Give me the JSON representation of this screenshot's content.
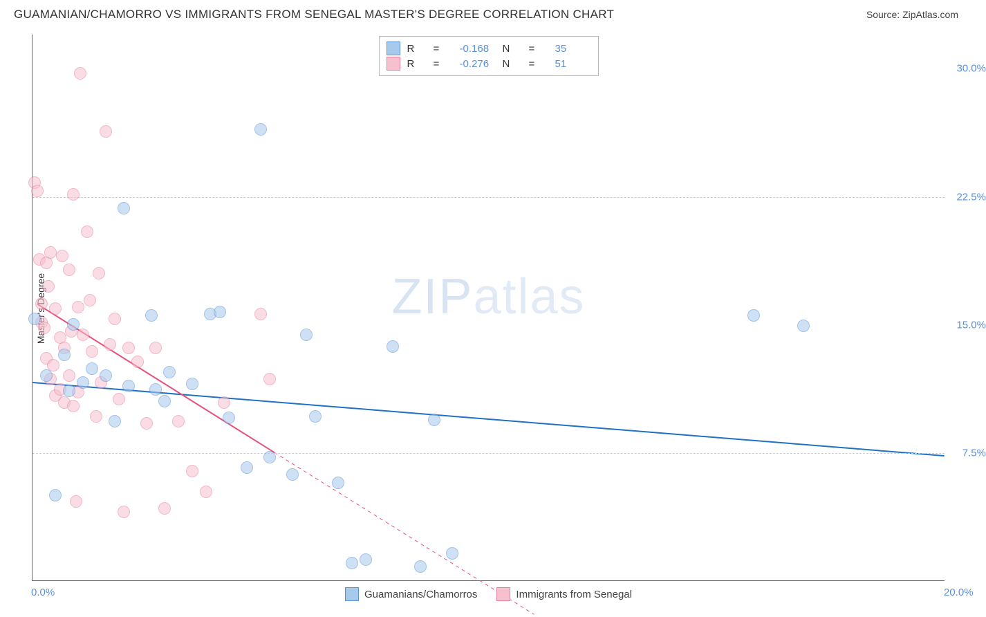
{
  "title": "GUAMANIAN/CHAMORRO VS IMMIGRANTS FROM SENEGAL MASTER'S DEGREE CORRELATION CHART",
  "source_label": "Source: ZipAtlas.com",
  "y_axis_label": "Master's Degree",
  "watermark": {
    "bold": "ZIP",
    "thin": "atlas"
  },
  "chart": {
    "type": "scatter",
    "xlim": [
      0,
      20
    ],
    "ylim": [
      0,
      32
    ],
    "background_color": "#ffffff",
    "grid_color": "#cccccc",
    "axis_color": "#666666",
    "y_gridlines": [
      7.5,
      22.5
    ],
    "y_ticks": [
      {
        "v": 7.5,
        "label": "7.5%"
      },
      {
        "v": 15.0,
        "label": "15.0%"
      },
      {
        "v": 22.5,
        "label": "22.5%"
      },
      {
        "v": 30.0,
        "label": "30.0%"
      }
    ],
    "x_ticks": [
      {
        "v": 0,
        "label": "0.0%"
      },
      {
        "v": 20,
        "label": "20.0%"
      }
    ],
    "tick_color": "#5b8fd6",
    "tick_fontsize": 15,
    "marker_radius": 9,
    "marker_opacity": 0.55,
    "series": [
      {
        "name": "Guamanians/Chamorros",
        "fill": "#a7c9ec",
        "stroke": "#5b8fd6",
        "R": "-0.168",
        "N": "35",
        "trend": {
          "x1": 0,
          "y1": 11.6,
          "x2": 20,
          "y2": 7.3,
          "color": "#1f71c4",
          "width": 2
        },
        "points": [
          [
            0.05,
            15.3
          ],
          [
            0.3,
            12.0
          ],
          [
            0.5,
            5.0
          ],
          [
            0.7,
            13.2
          ],
          [
            0.8,
            11.1
          ],
          [
            0.9,
            15.0
          ],
          [
            1.1,
            11.6
          ],
          [
            1.3,
            12.4
          ],
          [
            1.6,
            12.0
          ],
          [
            1.8,
            9.3
          ],
          [
            2.0,
            21.8
          ],
          [
            2.1,
            11.4
          ],
          [
            2.6,
            15.5
          ],
          [
            2.7,
            11.2
          ],
          [
            2.9,
            10.5
          ],
          [
            3.0,
            12.2
          ],
          [
            3.5,
            11.5
          ],
          [
            3.9,
            15.6
          ],
          [
            4.1,
            15.7
          ],
          [
            4.3,
            9.5
          ],
          [
            4.7,
            6.6
          ],
          [
            5.0,
            26.4
          ],
          [
            5.2,
            7.2
          ],
          [
            5.7,
            6.2
          ],
          [
            6.0,
            14.4
          ],
          [
            6.2,
            9.6
          ],
          [
            6.7,
            5.7
          ],
          [
            7.0,
            1.0
          ],
          [
            7.3,
            1.2
          ],
          [
            7.9,
            13.7
          ],
          [
            8.5,
            0.8
          ],
          [
            8.8,
            9.4
          ],
          [
            9.2,
            1.6
          ],
          [
            15.8,
            15.5
          ],
          [
            16.9,
            14.9
          ]
        ]
      },
      {
        "name": "Immigrants from Senegal",
        "fill": "#f6c0ce",
        "stroke": "#e77f9d",
        "R": "-0.276",
        "N": "51",
        "trend": {
          "x1": 0.1,
          "y1": 16.2,
          "x2": 5.3,
          "y2": 7.5,
          "color": "#e64f7a",
          "width": 2,
          "dash_x2": 11.0,
          "dash_y2": -2.0
        },
        "points": [
          [
            0.05,
            23.3
          ],
          [
            0.1,
            22.8
          ],
          [
            0.15,
            18.8
          ],
          [
            0.2,
            16.2
          ],
          [
            0.2,
            15.1
          ],
          [
            0.25,
            14.8
          ],
          [
            0.3,
            18.6
          ],
          [
            0.3,
            13.0
          ],
          [
            0.35,
            17.2
          ],
          [
            0.4,
            19.2
          ],
          [
            0.4,
            11.8
          ],
          [
            0.45,
            12.6
          ],
          [
            0.5,
            15.9
          ],
          [
            0.5,
            10.8
          ],
          [
            0.6,
            14.2
          ],
          [
            0.6,
            11.2
          ],
          [
            0.65,
            19.0
          ],
          [
            0.7,
            13.6
          ],
          [
            0.7,
            10.4
          ],
          [
            0.8,
            18.2
          ],
          [
            0.8,
            12.0
          ],
          [
            0.85,
            14.6
          ],
          [
            0.9,
            22.6
          ],
          [
            0.9,
            10.2
          ],
          [
            0.95,
            4.6
          ],
          [
            1.0,
            16.0
          ],
          [
            1.0,
            11.0
          ],
          [
            1.05,
            29.7
          ],
          [
            1.1,
            14.4
          ],
          [
            1.2,
            20.4
          ],
          [
            1.25,
            16.4
          ],
          [
            1.3,
            13.4
          ],
          [
            1.4,
            9.6
          ],
          [
            1.45,
            18.0
          ],
          [
            1.5,
            11.6
          ],
          [
            1.6,
            26.3
          ],
          [
            1.7,
            13.8
          ],
          [
            1.8,
            15.3
          ],
          [
            1.9,
            10.6
          ],
          [
            2.0,
            4.0
          ],
          [
            2.1,
            13.6
          ],
          [
            2.3,
            12.8
          ],
          [
            2.5,
            9.2
          ],
          [
            2.7,
            13.6
          ],
          [
            2.9,
            4.2
          ],
          [
            3.2,
            9.3
          ],
          [
            3.5,
            6.4
          ],
          [
            3.8,
            5.2
          ],
          [
            4.2,
            10.4
          ],
          [
            5.0,
            15.6
          ],
          [
            5.2,
            11.8
          ]
        ]
      }
    ]
  },
  "legend_top": {
    "r_label": "R",
    "n_label": "N",
    "equals": "="
  },
  "legend_bottom": {}
}
